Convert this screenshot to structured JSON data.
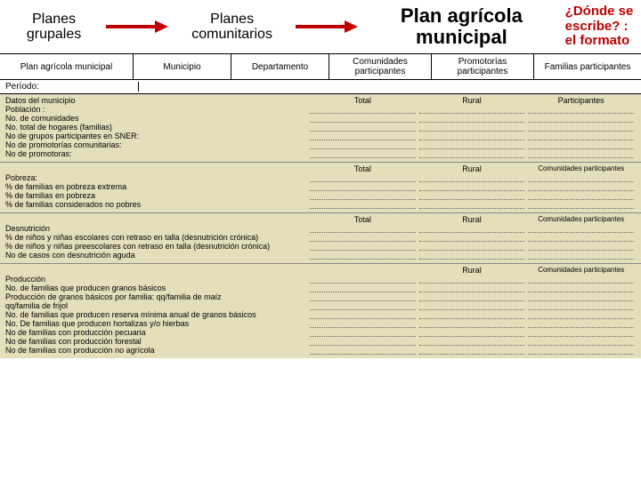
{
  "header": {
    "box1": "Planes grupales",
    "box2": "Planes comunitarios",
    "box3": "Plan agrícola municipal",
    "note": "¿Dónde se escribe? : el formato",
    "arrow_color": "#c00000"
  },
  "row2": {
    "c1": "Plan agrícola municipal",
    "c2": "Municipio",
    "c3": "Departamento",
    "c4": "Comunidades participantes",
    "c5": "Promotorías participantes",
    "c6": "Familias participantes"
  },
  "periodo": "Período:",
  "s1": {
    "title": "Datos del municipio",
    "cols": [
      "Total",
      "Rural",
      "Participantes"
    ],
    "rows": [
      "Población :",
      "No. de comunidades",
      "No. total de hogares (familias)",
      "No de grupos participantes en SNER:",
      "No de promotorías comunitarias:",
      "No de promotoras:"
    ]
  },
  "s2": {
    "cols": [
      "Total",
      "Rural",
      "Comunidades participantes"
    ],
    "rows": [
      "Pobreza:",
      "% de familias en pobreza extrema",
      "% de familias en pobreza",
      "% de familias considerados no pobres"
    ]
  },
  "s3": {
    "cols": [
      "Total",
      "Rural",
      "Comunidades participantes"
    ],
    "rows": [
      "Desnutrición",
      "% de niños y niñas escolares con retraso en talla (desnutrición crónica)",
      "% de niños y niñas preescolares con retraso en talla (desnutrición crónica)",
      "No de casos con desnutrición aguda"
    ]
  },
  "s4": {
    "cols": [
      "Rural",
      "Comunidades participantes"
    ],
    "rows": [
      "Producción",
      "No. de familias que producen granos básicos",
      "Producción de granos básicos por familia:        qq/familia de maíz",
      "                                                                           qq/familia de frijol",
      "No. de familias que producen reserva mínima anual de granos básicos",
      "No. De familias que producen hortalizas y/o hierbas",
      "No de familias con producción pecuaria",
      "No de familias con producción forestal",
      "No de familias con producción no agrícola"
    ]
  },
  "colors": {
    "form_bg": "#e4deba",
    "note_color": "#c00000"
  }
}
